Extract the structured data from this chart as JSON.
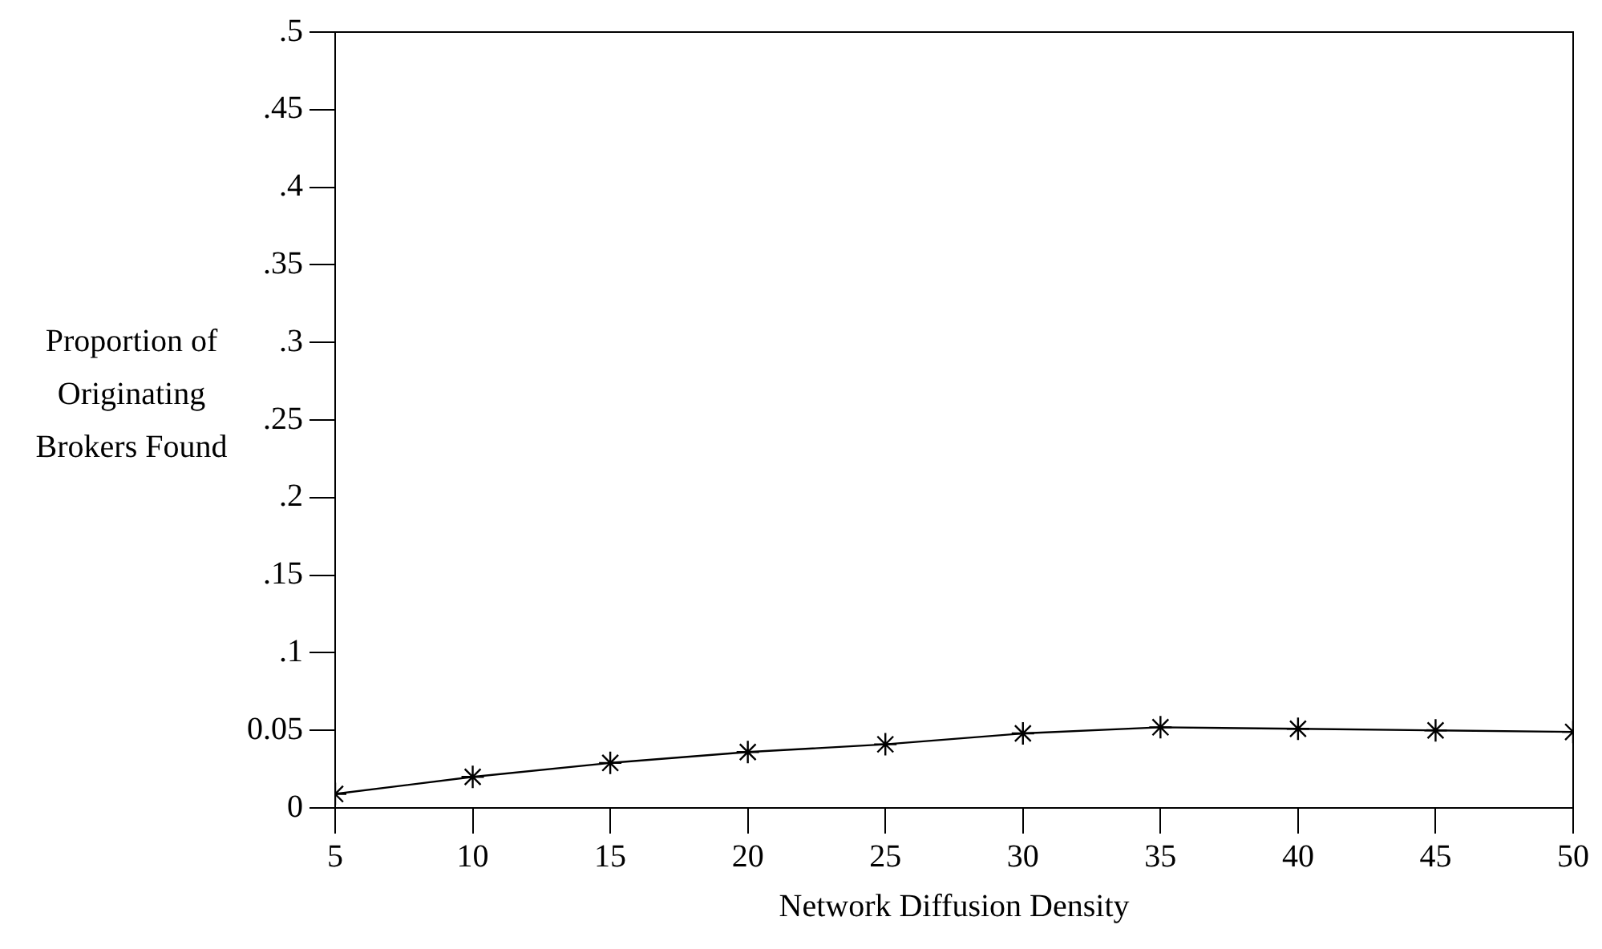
{
  "chart_data": {
    "type": "line",
    "xlabel": "Network Diffusion Density",
    "ylabel": "Proportion of Originating Brokers Found",
    "x": [
      5,
      10,
      15,
      20,
      25,
      30,
      35,
      40,
      45,
      50
    ],
    "series": [
      {
        "color": "#000000",
        "values": [
          0.009,
          0.02,
          0.029,
          0.036,
          0.041,
          0.048,
          0.052,
          0.051,
          0.05,
          0.049
        ]
      }
    ],
    "marker": "cross",
    "line_style": "solid",
    "xlim": [
      5,
      50
    ],
    "xticks": [
      5,
      10,
      15,
      20,
      25,
      30,
      35,
      40,
      45,
      50
    ],
    "ylim": [
      0,
      0.5
    ],
    "yticks": [
      0,
      {
        "value": 0.05,
        "label": "0.05"
      },
      {
        "value": 0.1,
        "label": ".1"
      },
      {
        "value": 0.15,
        "label": ".15"
      },
      {
        "value": 0.2,
        "label": ".2"
      },
      {
        "value": 0.25,
        "label": ".25"
      },
      {
        "value": 0.3,
        "label": ".3"
      },
      {
        "value": 0.35,
        "label": ".35"
      },
      {
        "value": 0.4,
        "label": ".4"
      },
      {
        "value": 0.45,
        "label": ".45"
      },
      {
        "value": 0.5,
        "label": ".5"
      }
    ],
    "legend": false
  }
}
